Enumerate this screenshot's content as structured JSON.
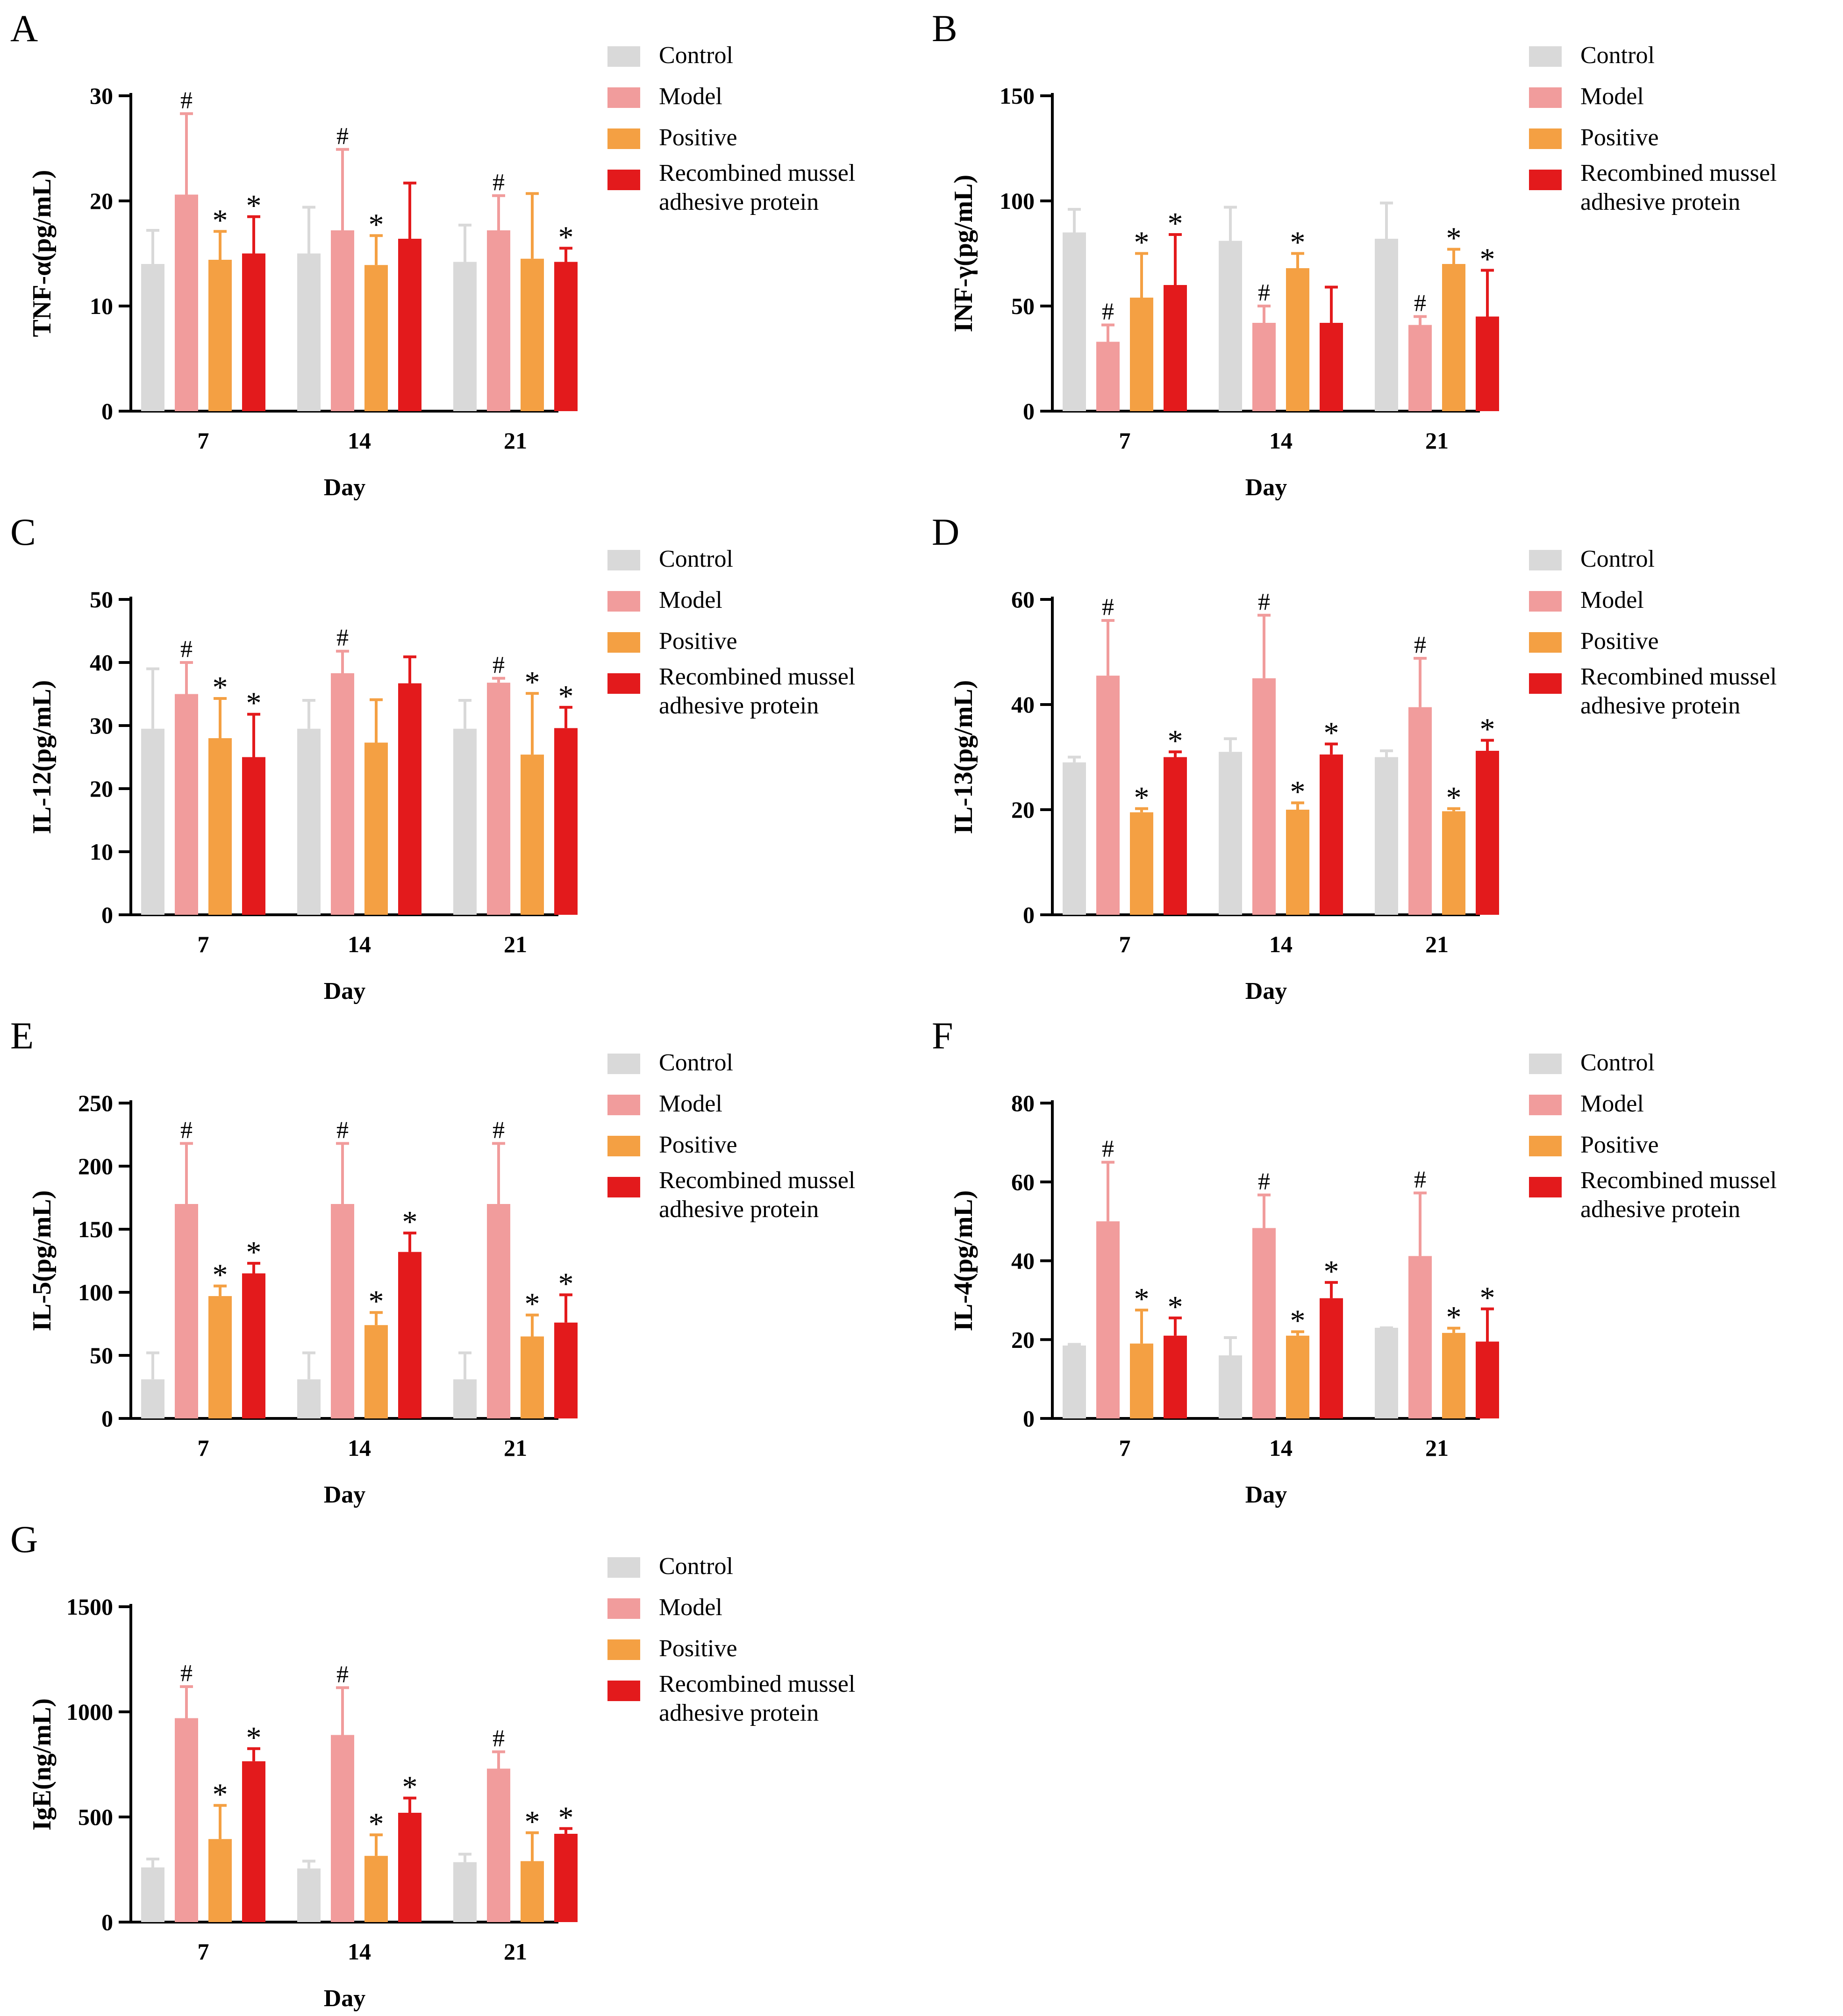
{
  "colors": {
    "control": "#d9d9d9",
    "model": "#f19c9c",
    "positive": "#f4a043",
    "rmap": "#e31a1c",
    "axis": "#000000"
  },
  "legend": [
    {
      "key": "control",
      "label": "Control"
    },
    {
      "key": "model",
      "label": "Model"
    },
    {
      "key": "positive",
      "label": "Positive"
    },
    {
      "key": "rmap",
      "label": "Recombined mussel adhesive protein"
    }
  ],
  "chart_data": [
    {
      "panel_label": "A",
      "type": "bar",
      "title": "",
      "xlabel": "Day",
      "ylabel": "TNF-α(pg/mL)",
      "ylim": [
        0,
        30
      ],
      "yticks": [
        0,
        10,
        20,
        30
      ],
      "categories": [
        "7",
        "14",
        "21"
      ],
      "series": [
        {
          "name": "Control",
          "values": [
            14,
            15,
            14.2
          ],
          "errors": [
            3.2,
            4.4,
            3.5
          ],
          "marks": [
            "",
            "",
            ""
          ]
        },
        {
          "name": "Model",
          "values": [
            20.6,
            17.2,
            17.2
          ],
          "errors": [
            7.7,
            7.7,
            3.3
          ],
          "marks": [
            "#",
            "#",
            "#"
          ]
        },
        {
          "name": "Positive",
          "values": [
            14.4,
            13.9,
            14.5
          ],
          "errors": [
            2.7,
            2.8,
            6.2
          ],
          "marks": [
            "*",
            "*",
            ""
          ]
        },
        {
          "name": "Recombined mussel adhesive protein",
          "values": [
            15,
            16.4,
            14.2
          ],
          "errors": [
            3.5,
            5.3,
            1.3
          ],
          "marks": [
            "*",
            "",
            "*"
          ]
        }
      ]
    },
    {
      "panel_label": "B",
      "type": "bar",
      "title": "",
      "xlabel": "Day",
      "ylabel": "INF-γ(pg/mL)",
      "ylim": [
        0,
        150
      ],
      "yticks": [
        0,
        50,
        100,
        150
      ],
      "categories": [
        "7",
        "14",
        "21"
      ],
      "series": [
        {
          "name": "Control",
          "values": [
            85,
            81,
            82
          ],
          "errors": [
            11,
            16,
            17
          ],
          "marks": [
            "",
            "",
            ""
          ]
        },
        {
          "name": "Model",
          "values": [
            33,
            42,
            41
          ],
          "errors": [
            8,
            8,
            4
          ],
          "marks": [
            "#",
            "#",
            "#"
          ]
        },
        {
          "name": "Positive",
          "values": [
            54,
            68,
            70
          ],
          "errors": [
            21,
            7,
            7
          ],
          "marks": [
            "*",
            "*",
            "*"
          ]
        },
        {
          "name": "Recombined mussel adhesive protein",
          "values": [
            60,
            42,
            45
          ],
          "errors": [
            24,
            17,
            22
          ],
          "marks": [
            "*",
            "",
            "*"
          ]
        }
      ]
    },
    {
      "panel_label": "C",
      "type": "bar",
      "title": "",
      "xlabel": "Day",
      "ylabel": "IL-12(pg/mL)",
      "ylim": [
        0,
        50
      ],
      "yticks": [
        0,
        10,
        20,
        30,
        40,
        50
      ],
      "categories": [
        "7",
        "14",
        "21"
      ],
      "series": [
        {
          "name": "Control",
          "values": [
            29.5,
            29.5,
            29.5
          ],
          "errors": [
            9.5,
            4.5,
            4.5
          ],
          "marks": [
            "",
            "",
            ""
          ]
        },
        {
          "name": "Model",
          "values": [
            35,
            38.3,
            36.8
          ],
          "errors": [
            5,
            3.5,
            0.7
          ],
          "marks": [
            "#",
            "#",
            "#"
          ]
        },
        {
          "name": "Positive",
          "values": [
            28,
            27.3,
            25.4
          ],
          "errors": [
            6.3,
            6.8,
            9.7
          ],
          "marks": [
            "*",
            "",
            "*"
          ]
        },
        {
          "name": "Recombined mussel adhesive protein",
          "values": [
            25,
            36.7,
            29.6
          ],
          "errors": [
            6.8,
            4.2,
            3.3
          ],
          "marks": [
            "*",
            "",
            "*"
          ]
        }
      ]
    },
    {
      "panel_label": "D",
      "type": "bar",
      "title": "",
      "xlabel": "Day",
      "ylabel": "IL-13(pg/mL)",
      "ylim": [
        0,
        60
      ],
      "yticks": [
        0,
        20,
        40,
        60
      ],
      "categories": [
        "7",
        "14",
        "21"
      ],
      "series": [
        {
          "name": "Control",
          "values": [
            29,
            31,
            30
          ],
          "errors": [
            1,
            2.5,
            1.2
          ],
          "marks": [
            "",
            "",
            ""
          ]
        },
        {
          "name": "Model",
          "values": [
            45.5,
            45,
            39.5
          ],
          "errors": [
            10.5,
            12,
            9.3
          ],
          "marks": [
            "#",
            "#",
            "#"
          ]
        },
        {
          "name": "Positive",
          "values": [
            19.5,
            20,
            19.7
          ],
          "errors": [
            0.7,
            1.3,
            0.5
          ],
          "marks": [
            "*",
            "*",
            "*"
          ]
        },
        {
          "name": "Recombined mussel adhesive protein",
          "values": [
            30,
            30.5,
            31.2
          ],
          "errors": [
            1,
            2,
            2
          ],
          "marks": [
            "*",
            "*",
            "*"
          ]
        }
      ]
    },
    {
      "panel_label": "E",
      "type": "bar",
      "title": "",
      "xlabel": "Day",
      "ylabel": "IL-5(pg/mL)",
      "ylim": [
        0,
        250
      ],
      "yticks": [
        0,
        50,
        100,
        150,
        200,
        250
      ],
      "categories": [
        "7",
        "14",
        "21"
      ],
      "series": [
        {
          "name": "Control",
          "values": [
            31,
            31,
            31
          ],
          "errors": [
            21,
            21,
            21
          ],
          "marks": [
            "",
            "",
            ""
          ]
        },
        {
          "name": "Model",
          "values": [
            170,
            170,
            170
          ],
          "errors": [
            48,
            48,
            48
          ],
          "marks": [
            "#",
            "#",
            "#"
          ]
        },
        {
          "name": "Positive",
          "values": [
            97,
            74,
            65
          ],
          "errors": [
            8,
            10,
            17
          ],
          "marks": [
            "*",
            "*",
            "*"
          ]
        },
        {
          "name": "Recombined mussel adhesive protein",
          "values": [
            115,
            132,
            76
          ],
          "errors": [
            8,
            15,
            22
          ],
          "marks": [
            "*",
            "*",
            "*"
          ]
        }
      ]
    },
    {
      "panel_label": "F",
      "type": "bar",
      "title": "",
      "xlabel": "Day",
      "ylabel": "IL-4(pg/mL)",
      "ylim": [
        0,
        80
      ],
      "yticks": [
        0,
        20,
        40,
        60,
        80
      ],
      "categories": [
        "7",
        "14",
        "21"
      ],
      "series": [
        {
          "name": "Control",
          "values": [
            18.5,
            16,
            23
          ],
          "errors": [
            0.3,
            4.5,
            0
          ],
          "marks": [
            "",
            "",
            ""
          ]
        },
        {
          "name": "Model",
          "values": [
            50,
            48.3,
            41.2
          ],
          "errors": [
            15,
            8.4,
            16
          ],
          "marks": [
            "#",
            "#",
            "#"
          ]
        },
        {
          "name": "Positive",
          "values": [
            19,
            21,
            21.7
          ],
          "errors": [
            8.5,
            1,
            1.2
          ],
          "marks": [
            "*",
            "*",
            "*"
          ]
        },
        {
          "name": "Recombined mussel adhesive protein",
          "values": [
            21,
            30.5,
            19.5
          ],
          "errors": [
            4.5,
            4,
            8.3
          ],
          "marks": [
            "*",
            "*",
            "*"
          ]
        }
      ]
    },
    {
      "panel_label": "G",
      "type": "bar",
      "title": "",
      "xlabel": "Day",
      "ylabel": "IgE(ng/mL)",
      "ylim": [
        0,
        1500
      ],
      "yticks": [
        0,
        500,
        1000,
        1500
      ],
      "categories": [
        "7",
        "14",
        "21"
      ],
      "series": [
        {
          "name": "Control",
          "values": [
            260,
            255,
            285
          ],
          "errors": [
            40,
            35,
            38
          ],
          "marks": [
            "",
            "",
            ""
          ]
        },
        {
          "name": "Model",
          "values": [
            970,
            890,
            730
          ],
          "errors": [
            150,
            225,
            80
          ],
          "marks": [
            "#",
            "#",
            "#"
          ]
        },
        {
          "name": "Positive",
          "values": [
            395,
            315,
            290
          ],
          "errors": [
            160,
            100,
            135
          ],
          "marks": [
            "*",
            "*",
            "*"
          ]
        },
        {
          "name": "Recombined mussel adhesive protein",
          "values": [
            765,
            520,
            420
          ],
          "errors": [
            60,
            70,
            25
          ],
          "marks": [
            "*",
            "*",
            "*"
          ]
        }
      ]
    }
  ]
}
